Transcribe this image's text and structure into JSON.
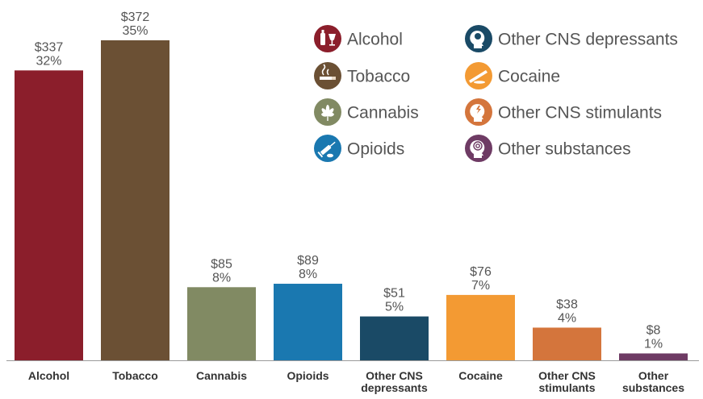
{
  "chart_data": {
    "type": "bar",
    "categories": [
      "Alcohol",
      "Tobacco",
      "Cannabis",
      "Opioids",
      "Other CNS depressants",
      "Cocaine",
      "Other CNS stimulants",
      "Other substances"
    ],
    "category_lines": [
      [
        "Alcohol"
      ],
      [
        "Tobacco"
      ],
      [
        "Cannabis"
      ],
      [
        "Opioids"
      ],
      [
        "Other CNS",
        "depressants"
      ],
      [
        "Cocaine"
      ],
      [
        "Other CNS",
        "stimulants"
      ],
      [
        "Other",
        "substances"
      ]
    ],
    "values": [
      337,
      372,
      85,
      89,
      51,
      76,
      38,
      8
    ],
    "value_labels": [
      "$337",
      "$372",
      "$85",
      "$89",
      "$51",
      "$76",
      "$38",
      "$8"
    ],
    "percent_labels": [
      "32%",
      "35%",
      "8%",
      "8%",
      "5%",
      "7%",
      "4%",
      "1%"
    ],
    "colors": [
      "#8b1e2b",
      "#6b5034",
      "#818a63",
      "#1a78b0",
      "#1a4a66",
      "#f39a33",
      "#d4753c",
      "#6e3b64"
    ],
    "ylim": [
      0,
      372
    ],
    "grid": false
  },
  "legend": [
    {
      "label": "Alcohol",
      "icon": "alcohol-icon",
      "color": "#8b1e2b"
    },
    {
      "label": "Tobacco",
      "icon": "tobacco-icon",
      "color": "#6b5034"
    },
    {
      "label": "Cannabis",
      "icon": "cannabis-icon",
      "color": "#818a63"
    },
    {
      "label": "Opioids",
      "icon": "opioids-icon",
      "color": "#1a78b0"
    },
    {
      "label": "Other CNS depressants",
      "icon": "head-depressant-icon",
      "color": "#1a4a66"
    },
    {
      "label": "Cocaine",
      "icon": "cocaine-icon",
      "color": "#f39a33"
    },
    {
      "label": "Other CNS stimulants",
      "icon": "head-stimulant-icon",
      "color": "#d4753c"
    },
    {
      "label": "Other substances",
      "icon": "head-spiral-icon",
      "color": "#6e3b64"
    }
  ]
}
